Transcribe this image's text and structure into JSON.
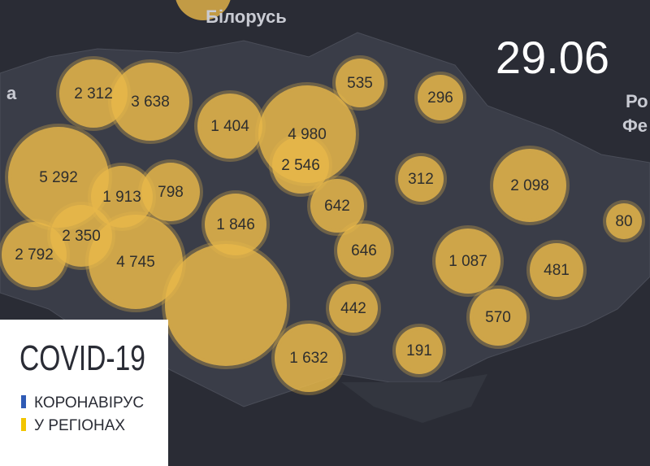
{
  "map": {
    "date": "29.06",
    "country_labels": [
      "Білорусь",
      "а",
      "Ро",
      "Фе"
    ],
    "regions": [
      "2 312",
      "3 638",
      "1 404",
      "4 980",
      "2 546",
      "535",
      "296",
      "5 292",
      "1 913",
      "798",
      "1 846",
      "642",
      "312",
      "2 098",
      "80",
      "2 350",
      "2 792",
      "4 745",
      "646",
      "1 087",
      "481",
      "442",
      "570",
      "1 632",
      "191"
    ],
    "legend": {
      "title": "COVID-19",
      "line1": "КОРОНАВІРУС",
      "line2": "У РЕГІОНАХ"
    }
  }
}
